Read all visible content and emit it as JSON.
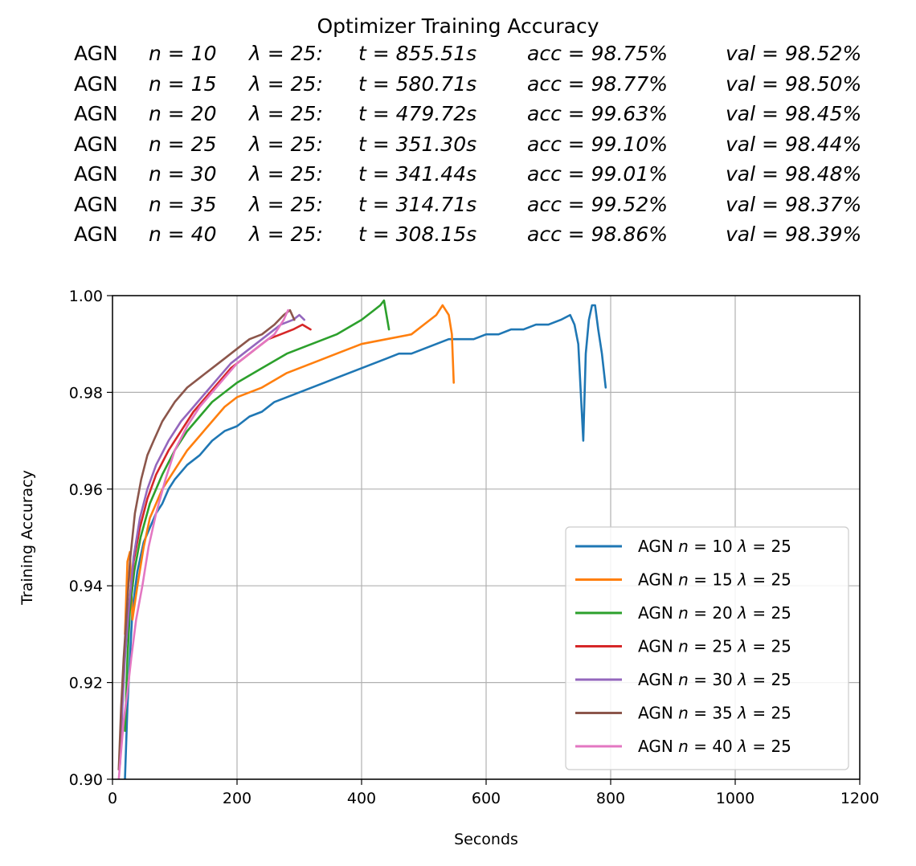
{
  "chart_data": {
    "type": "line",
    "title": "Optimizer Training Accuracy",
    "summary": [
      {
        "label": "AGN",
        "n": "10",
        "lambda": "25",
        "t": "855.51s",
        "acc": "98.75%",
        "val": "98.52%"
      },
      {
        "label": "AGN",
        "n": "15",
        "lambda": "25",
        "t": "580.71s",
        "acc": "98.77%",
        "val": "98.50%"
      },
      {
        "label": "AGN",
        "n": "20",
        "lambda": "25",
        "t": "479.72s",
        "acc": "99.63%",
        "val": "98.45%"
      },
      {
        "label": "AGN",
        "n": "25",
        "lambda": "25",
        "t": "351.30s",
        "acc": "99.10%",
        "val": "98.44%"
      },
      {
        "label": "AGN",
        "n": "30",
        "lambda": "25",
        "t": "341.44s",
        "acc": "99.01%",
        "val": "98.48%"
      },
      {
        "label": "AGN",
        "n": "35",
        "lambda": "25",
        "t": "314.71s",
        "acc": "99.52%",
        "val": "98.37%"
      },
      {
        "label": "AGN",
        "n": "40",
        "lambda": "25",
        "t": "308.15s",
        "acc": "98.86%",
        "val": "98.39%"
      }
    ],
    "xlabel": "Seconds",
    "ylabel": "Training Accuracy",
    "xlim": [
      0,
      1200
    ],
    "ylim": [
      0.9,
      1.0
    ],
    "xticks": [
      "0",
      "200",
      "400",
      "600",
      "800",
      "1000",
      "1200"
    ],
    "yticks": [
      "0.90",
      "0.92",
      "0.94",
      "0.96",
      "0.98",
      "1.00"
    ],
    "grid": true,
    "legend_position": "lower-right",
    "series": [
      {
        "name": "AGN n = 10 λ = 25",
        "legend_prefix": "AGN",
        "n": "10",
        "lambda": "25",
        "color": "#1f77b4",
        "x": [
          20,
          24,
          28,
          32,
          40,
          50,
          60,
          70,
          80,
          90,
          100,
          120,
          140,
          160,
          180,
          200,
          220,
          240,
          260,
          280,
          300,
          320,
          340,
          360,
          380,
          400,
          420,
          440,
          460,
          480,
          500,
          520,
          540,
          560,
          580,
          600,
          620,
          640,
          660,
          680,
          700,
          720,
          735,
          742,
          748,
          752,
          756,
          760,
          765,
          770,
          775,
          780,
          786,
          792
        ],
        "y": [
          0.9,
          0.915,
          0.925,
          0.935,
          0.943,
          0.949,
          0.952,
          0.955,
          0.957,
          0.96,
          0.962,
          0.965,
          0.967,
          0.97,
          0.972,
          0.973,
          0.975,
          0.976,
          0.978,
          0.979,
          0.98,
          0.981,
          0.982,
          0.983,
          0.984,
          0.985,
          0.986,
          0.987,
          0.988,
          0.988,
          0.989,
          0.99,
          0.991,
          0.991,
          0.991,
          0.992,
          0.992,
          0.993,
          0.993,
          0.994,
          0.994,
          0.995,
          0.996,
          0.994,
          0.99,
          0.98,
          0.97,
          0.988,
          0.995,
          0.998,
          0.998,
          0.993,
          0.988,
          0.981
        ]
      },
      {
        "name": "AGN n = 15 λ = 25",
        "legend_prefix": "AGN",
        "n": "15",
        "lambda": "25",
        "color": "#ff7f0e",
        "x": [
          20,
          24,
          28,
          32,
          40,
          50,
          60,
          80,
          100,
          120,
          140,
          160,
          180,
          200,
          240,
          280,
          320,
          360,
          400,
          440,
          480,
          500,
          520,
          530,
          540,
          545,
          548
        ],
        "y": [
          0.93,
          0.945,
          0.947,
          0.933,
          0.94,
          0.948,
          0.954,
          0.96,
          0.964,
          0.968,
          0.971,
          0.974,
          0.977,
          0.979,
          0.981,
          0.984,
          0.986,
          0.988,
          0.99,
          0.991,
          0.992,
          0.994,
          0.996,
          0.998,
          0.996,
          0.992,
          0.982
        ]
      },
      {
        "name": "AGN n = 20 λ = 25",
        "legend_prefix": "AGN",
        "n": "20",
        "lambda": "25",
        "color": "#2ca02c",
        "x": [
          20,
          24,
          28,
          35,
          45,
          60,
          80,
          100,
          120,
          140,
          160,
          180,
          200,
          240,
          280,
          320,
          360,
          400,
          420,
          430,
          436,
          440,
          444
        ],
        "y": [
          0.91,
          0.925,
          0.935,
          0.943,
          0.95,
          0.957,
          0.963,
          0.968,
          0.972,
          0.975,
          0.978,
          0.98,
          0.982,
          0.985,
          0.988,
          0.99,
          0.992,
          0.995,
          0.997,
          0.998,
          0.999,
          0.996,
          0.993
        ]
      },
      {
        "name": "AGN n = 25 λ = 25",
        "legend_prefix": "AGN",
        "n": "25",
        "lambda": "25",
        "color": "#d62728",
        "x": [
          12,
          16,
          20,
          26,
          34,
          44,
          56,
          70,
          90,
          110,
          130,
          150,
          170,
          190,
          210,
          230,
          250,
          270,
          290,
          305,
          318
        ],
        "y": [
          0.905,
          0.918,
          0.927,
          0.935,
          0.945,
          0.952,
          0.958,
          0.963,
          0.968,
          0.972,
          0.976,
          0.979,
          0.982,
          0.985,
          0.987,
          0.989,
          0.991,
          0.992,
          0.993,
          0.994,
          0.993
        ]
      },
      {
        "name": "AGN n = 30 λ = 25",
        "legend_prefix": "AGN",
        "n": "30",
        "lambda": "25",
        "color": "#9467bd",
        "x": [
          12,
          16,
          20,
          26,
          34,
          44,
          56,
          70,
          90,
          110,
          130,
          150,
          170,
          190,
          210,
          230,
          250,
          270,
          290,
          300,
          308
        ],
        "y": [
          0.903,
          0.915,
          0.925,
          0.935,
          0.946,
          0.954,
          0.96,
          0.965,
          0.97,
          0.974,
          0.977,
          0.98,
          0.983,
          0.986,
          0.988,
          0.99,
          0.992,
          0.994,
          0.995,
          0.996,
          0.995
        ]
      },
      {
        "name": "AGN n = 35 λ = 25",
        "legend_prefix": "AGN",
        "n": "35",
        "lambda": "25",
        "color": "#8c564b",
        "x": [
          10,
          14,
          18,
          22,
          28,
          36,
          46,
          56,
          66,
          80,
          100,
          120,
          140,
          160,
          180,
          200,
          220,
          240,
          260,
          275,
          285,
          292
        ],
        "y": [
          0.902,
          0.915,
          0.925,
          0.933,
          0.945,
          0.955,
          0.962,
          0.967,
          0.97,
          0.974,
          0.978,
          0.981,
          0.983,
          0.985,
          0.987,
          0.989,
          0.991,
          0.992,
          0.994,
          0.996,
          0.997,
          0.995
        ]
      },
      {
        "name": "AGN n = 40 λ = 25",
        "legend_prefix": "AGN",
        "n": "40",
        "lambda": "25",
        "color": "#e377c2",
        "x": [
          10,
          14,
          18,
          24,
          30,
          38,
          48,
          58,
          70,
          85,
          100,
          120,
          140,
          160,
          180,
          200,
          220,
          240,
          260,
          275,
          282
        ],
        "y": [
          0.9,
          0.906,
          0.912,
          0.918,
          0.925,
          0.933,
          0.94,
          0.948,
          0.955,
          0.962,
          0.968,
          0.973,
          0.977,
          0.98,
          0.983,
          0.986,
          0.988,
          0.99,
          0.992,
          0.995,
          0.997
        ]
      }
    ]
  }
}
